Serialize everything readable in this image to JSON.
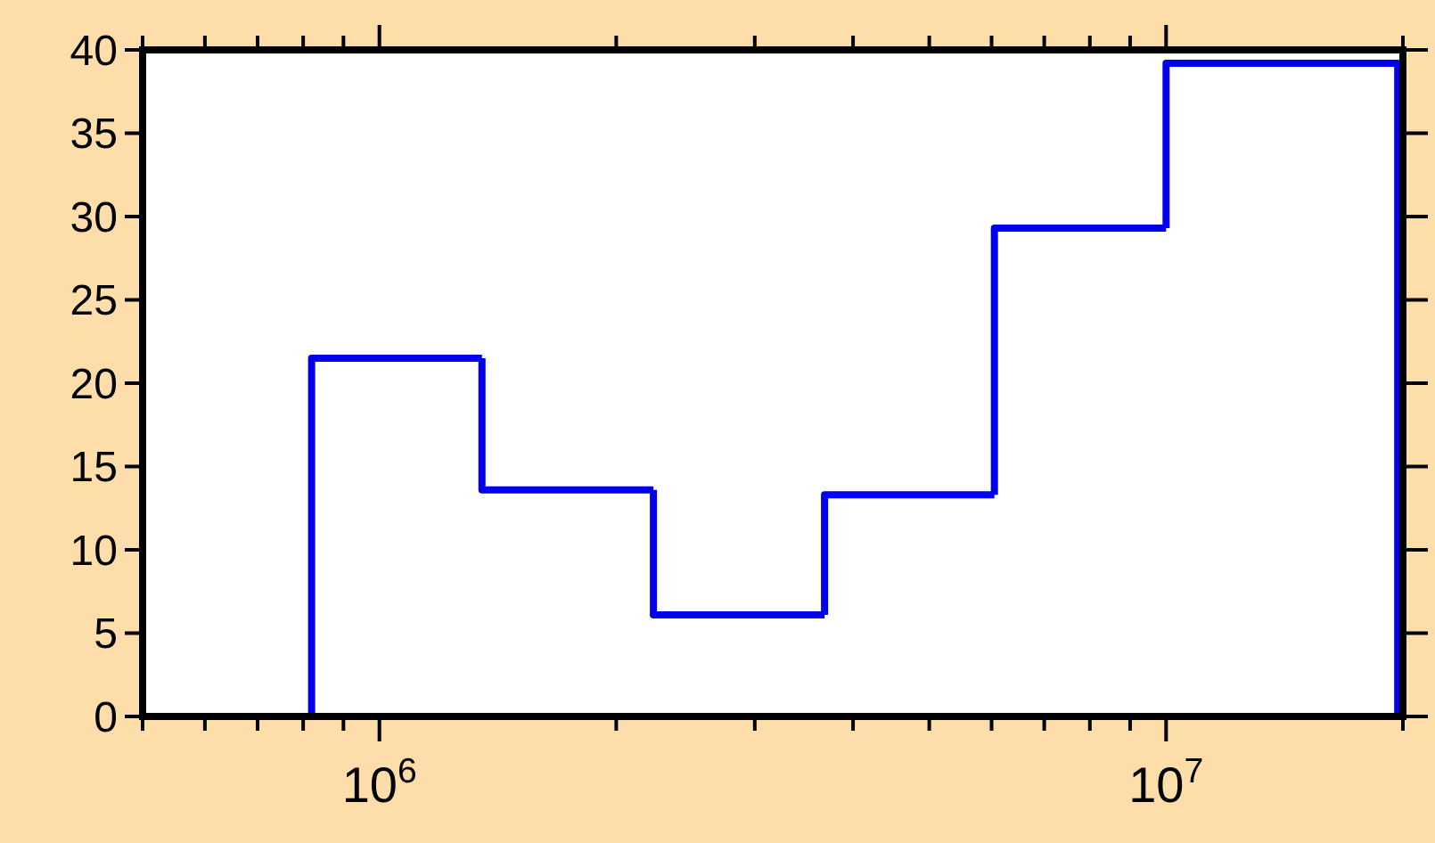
{
  "chart_data": {
    "type": "histogram",
    "bins": [
      820000,
      1350000,
      2230000,
      3680000,
      6050000,
      10000000,
      19700000
    ],
    "values": [
      21.5,
      13.6,
      6.1,
      13.3,
      29.3,
      39.2
    ],
    "color": "#0000ee",
    "log": "x",
    "xlim": [
      500000,
      20000000
    ],
    "xticks": [
      {
        "value": 500000,
        "label": null
      },
      {
        "value": 600000,
        "label": null
      },
      {
        "value": 700000,
        "label": null
      },
      {
        "value": 800000,
        "label": null
      },
      {
        "value": 900000,
        "label": null
      },
      {
        "value": 1000000,
        "label": "10$^{6}$"
      },
      {
        "value": 2000000,
        "label": null
      },
      {
        "value": 3000000,
        "label": null
      },
      {
        "value": 4000000,
        "label": null
      },
      {
        "value": 5000000,
        "label": null
      },
      {
        "value": 6000000,
        "label": null
      },
      {
        "value": 7000000,
        "label": null
      },
      {
        "value": 8000000,
        "label": null
      },
      {
        "value": 9000000,
        "label": null
      },
      {
        "value": 10000000,
        "label": "10$^{7}$"
      },
      {
        "value": 20000000,
        "label": null
      }
    ],
    "ylim": [
      0,
      40
    ],
    "yticks": [
      0,
      5,
      10,
      15,
      20,
      25,
      30,
      35,
      40
    ]
  }
}
